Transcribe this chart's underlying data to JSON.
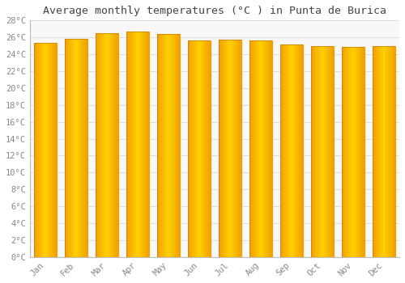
{
  "title": "Average monthly temperatures (°C ) in Punta de Burica",
  "months": [
    "Jan",
    "Feb",
    "Mar",
    "Apr",
    "May",
    "Jun",
    "Jul",
    "Aug",
    "Sep",
    "Oct",
    "Nov",
    "Dec"
  ],
  "values": [
    25.3,
    25.8,
    26.5,
    26.7,
    26.4,
    25.6,
    25.7,
    25.6,
    25.2,
    25.0,
    24.9,
    25.0
  ],
  "bar_color_center": "#FFD000",
  "bar_color_edge": "#F0A000",
  "bar_border_color": "#C87800",
  "background_color": "#ffffff",
  "plot_bg_color": "#f8f8f8",
  "grid_color": "#dddddd",
  "title_color": "#444444",
  "tick_color": "#888888",
  "ylim": [
    0,
    28
  ],
  "yticks": [
    0,
    2,
    4,
    6,
    8,
    10,
    12,
    14,
    16,
    18,
    20,
    22,
    24,
    26,
    28
  ],
  "title_fontsize": 9.5,
  "tick_fontsize": 7.5,
  "bar_width": 0.75
}
